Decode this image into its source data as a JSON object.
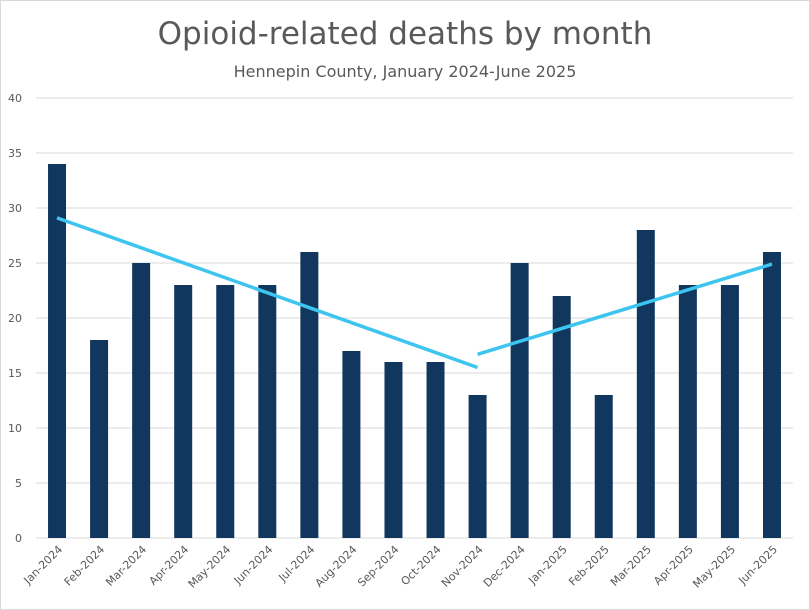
{
  "chart_data": {
    "type": "bar",
    "title": "Opioid-related deaths by month",
    "subtitle": "Hennepin County, January 2024-June 2025",
    "xlabel": "",
    "ylabel": "",
    "ylim": [
      0,
      40
    ],
    "yticks": [
      0,
      5,
      10,
      15,
      20,
      25,
      30,
      35,
      40
    ],
    "grid": true,
    "categories": [
      "Jan-2024",
      "Feb-2024",
      "Mar-2024",
      "Apr-2024",
      "May-2024",
      "Jun-2024",
      "Jul-2024",
      "Aug-2024",
      "Sep-2024",
      "Oct-2024",
      "Nov-2024",
      "Dec-2024",
      "Jan-2025",
      "Feb-2025",
      "Mar-2025",
      "Apr-2025",
      "May-2025",
      "Jun-2025"
    ],
    "values": [
      34,
      18,
      25,
      23,
      23,
      23,
      26,
      17,
      16,
      16,
      13,
      25,
      22,
      13,
      28,
      23,
      23,
      26
    ],
    "trend_lines": [
      {
        "from": "Jan-2024",
        "to": "Nov-2024",
        "start": 29.1,
        "end": 15.5
      },
      {
        "from": "Nov-2024",
        "to": "Jun-2025",
        "start": 16.7,
        "end": 24.9
      }
    ],
    "colors": {
      "bar": "#11375e",
      "trend": "#3dc5f0",
      "grid": "#d9d9d9"
    }
  }
}
